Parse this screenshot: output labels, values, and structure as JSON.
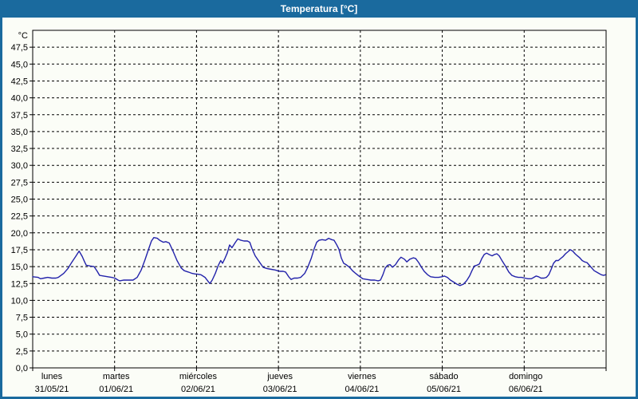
{
  "window": {
    "title": "Temperatura [°C]",
    "titlebar_color": "#1A6A9E",
    "background_color": "#FBFDF7"
  },
  "chart_data": {
    "type": "line",
    "title": "Temperatura [°C]",
    "y_unit": "°C",
    "ylim": [
      0,
      50
    ],
    "y_tick_step": 2.5,
    "y_tick_labels": [
      "0,0",
      "2,5",
      "5,0",
      "7,5",
      "10,0",
      "12,5",
      "15,0",
      "17,5",
      "20,0",
      "22,5",
      "25,0",
      "27,5",
      "30,0",
      "32,5",
      "35,0",
      "37,5",
      "40,0",
      "42,5",
      "45,0",
      "47,5"
    ],
    "grid": "dashed",
    "legend": "none",
    "axis_color": "#000000",
    "line_color": "#2222AA",
    "x_axis": {
      "hours_total": 168,
      "days": [
        {
          "name": "lunes",
          "date": "31/05/21"
        },
        {
          "name": "martes",
          "date": "01/06/21"
        },
        {
          "name": "miércoles",
          "date": "02/06/21"
        },
        {
          "name": "jueves",
          "date": "03/06/21"
        },
        {
          "name": "viernes",
          "date": "04/06/21"
        },
        {
          "name": "sábado",
          "date": "05/06/21"
        },
        {
          "name": "domingo",
          "date": "06/06/21"
        }
      ]
    },
    "series": [
      {
        "name": "Temperatura",
        "points": [
          [
            0,
            13.5
          ],
          [
            1.6,
            13.4
          ],
          [
            2.3,
            13.2
          ],
          [
            3.3,
            13.3
          ],
          [
            4.4,
            13.4
          ],
          [
            5.6,
            13.3
          ],
          [
            6.8,
            13.3
          ],
          [
            7.5,
            13.4
          ],
          [
            9.1,
            14.0
          ],
          [
            10.3,
            14.7
          ],
          [
            11.4,
            15.6
          ],
          [
            12.6,
            16.5
          ],
          [
            13.6,
            17.3
          ],
          [
            14.5,
            16.5
          ],
          [
            15.2,
            15.7
          ],
          [
            15.7,
            15.2
          ],
          [
            16.8,
            15.1
          ],
          [
            18.0,
            15.0
          ],
          [
            18.9,
            14.3
          ],
          [
            19.6,
            13.7
          ],
          [
            20.8,
            13.6
          ],
          [
            22.0,
            13.5
          ],
          [
            23.1,
            13.4
          ],
          [
            24.1,
            13.3
          ],
          [
            25.0,
            13.0
          ],
          [
            25.5,
            12.9
          ],
          [
            26.6,
            13.0
          ],
          [
            27.8,
            13.0
          ],
          [
            29.4,
            13.0
          ],
          [
            30.6,
            13.4
          ],
          [
            31.8,
            14.5
          ],
          [
            32.9,
            16.0
          ],
          [
            33.9,
            17.5
          ],
          [
            34.8,
            18.8
          ],
          [
            35.5,
            19.3
          ],
          [
            36.5,
            19.2
          ],
          [
            37.2,
            18.9
          ],
          [
            38.3,
            18.6
          ],
          [
            39.0,
            18.7
          ],
          [
            40.0,
            18.5
          ],
          [
            41.1,
            17.3
          ],
          [
            42.3,
            15.9
          ],
          [
            43.5,
            14.8
          ],
          [
            44.4,
            14.4
          ],
          [
            45.6,
            14.2
          ],
          [
            46.7,
            14.0
          ],
          [
            47.7,
            13.9
          ],
          [
            48.1,
            13.9
          ],
          [
            49.3,
            13.8
          ],
          [
            50.5,
            13.4
          ],
          [
            51.4,
            12.8
          ],
          [
            51.9,
            12.5
          ],
          [
            52.6,
            13.0
          ],
          [
            53.5,
            14.0
          ],
          [
            54.4,
            15.2
          ],
          [
            55.1,
            15.9
          ],
          [
            55.6,
            15.5
          ],
          [
            56.3,
            16.2
          ],
          [
            57.0,
            17.0
          ],
          [
            57.7,
            18.2
          ],
          [
            58.4,
            17.8
          ],
          [
            59.4,
            18.6
          ],
          [
            60.1,
            19.1
          ],
          [
            61.0,
            18.9
          ],
          [
            61.9,
            18.8
          ],
          [
            62.9,
            18.8
          ],
          [
            63.6,
            18.6
          ],
          [
            64.3,
            17.6
          ],
          [
            65.2,
            16.6
          ],
          [
            66.4,
            15.7
          ],
          [
            67.5,
            14.9
          ],
          [
            68.7,
            14.7
          ],
          [
            69.9,
            14.6
          ],
          [
            71.0,
            14.5
          ],
          [
            71.7,
            14.4
          ],
          [
            72.4,
            14.3
          ],
          [
            73.4,
            14.3
          ],
          [
            74.1,
            14.2
          ],
          [
            75.0,
            13.5
          ],
          [
            75.7,
            13.1
          ],
          [
            76.6,
            13.3
          ],
          [
            77.6,
            13.3
          ],
          [
            78.5,
            13.4
          ],
          [
            79.7,
            14.0
          ],
          [
            80.6,
            14.9
          ],
          [
            81.6,
            16.2
          ],
          [
            82.5,
            17.7
          ],
          [
            83.2,
            18.6
          ],
          [
            83.9,
            18.9
          ],
          [
            84.8,
            19.0
          ],
          [
            85.8,
            18.9
          ],
          [
            86.7,
            19.2
          ],
          [
            87.6,
            19.0
          ],
          [
            88.3,
            18.9
          ],
          [
            89.0,
            18.3
          ],
          [
            89.7,
            17.6
          ],
          [
            90.4,
            16.3
          ],
          [
            91.1,
            15.5
          ],
          [
            91.8,
            15.3
          ],
          [
            92.8,
            14.9
          ],
          [
            93.7,
            14.4
          ],
          [
            94.6,
            14.0
          ],
          [
            95.6,
            13.6
          ],
          [
            96.7,
            13.2
          ],
          [
            97.9,
            13.1
          ],
          [
            99.1,
            13.0
          ],
          [
            100.2,
            13.0
          ],
          [
            101.2,
            12.9
          ],
          [
            101.9,
            13.0
          ],
          [
            102.6,
            13.8
          ],
          [
            103.3,
            14.8
          ],
          [
            104.0,
            15.2
          ],
          [
            104.7,
            15.3
          ],
          [
            105.4,
            14.9
          ],
          [
            106.3,
            15.3
          ],
          [
            107.2,
            16.0
          ],
          [
            107.9,
            16.4
          ],
          [
            108.9,
            16.1
          ],
          [
            109.6,
            15.7
          ],
          [
            110.5,
            16.1
          ],
          [
            111.5,
            16.3
          ],
          [
            112.2,
            16.2
          ],
          [
            113.1,
            15.6
          ],
          [
            113.8,
            15.0
          ],
          [
            114.7,
            14.3
          ],
          [
            115.7,
            13.8
          ],
          [
            116.6,
            13.5
          ],
          [
            117.8,
            13.4
          ],
          [
            118.9,
            13.4
          ],
          [
            119.9,
            13.5
          ],
          [
            120.6,
            13.6
          ],
          [
            121.5,
            13.4
          ],
          [
            122.4,
            13.0
          ],
          [
            123.4,
            12.7
          ],
          [
            124.3,
            12.4
          ],
          [
            125.2,
            12.2
          ],
          [
            126.2,
            12.4
          ],
          [
            127.1,
            12.9
          ],
          [
            128.0,
            13.6
          ],
          [
            128.7,
            14.4
          ],
          [
            129.4,
            15.1
          ],
          [
            130.1,
            15.2
          ],
          [
            130.9,
            15.4
          ],
          [
            131.6,
            16.2
          ],
          [
            132.3,
            16.8
          ],
          [
            133.0,
            17.0
          ],
          [
            133.7,
            16.8
          ],
          [
            134.6,
            16.6
          ],
          [
            135.3,
            16.8
          ],
          [
            136.0,
            16.9
          ],
          [
            136.7,
            16.6
          ],
          [
            137.6,
            15.8
          ],
          [
            138.6,
            15.0
          ],
          [
            139.5,
            14.2
          ],
          [
            140.4,
            13.7
          ],
          [
            141.4,
            13.5
          ],
          [
            142.3,
            13.4
          ],
          [
            143.2,
            13.4
          ],
          [
            144.2,
            13.3
          ],
          [
            145.1,
            13.2
          ],
          [
            146.1,
            13.2
          ],
          [
            146.8,
            13.4
          ],
          [
            147.5,
            13.6
          ],
          [
            148.2,
            13.5
          ],
          [
            148.9,
            13.3
          ],
          [
            149.8,
            13.3
          ],
          [
            150.5,
            13.4
          ],
          [
            151.2,
            13.8
          ],
          [
            151.9,
            14.6
          ],
          [
            152.6,
            15.5
          ],
          [
            153.3,
            15.9
          ],
          [
            154.0,
            15.9
          ],
          [
            154.7,
            16.2
          ],
          [
            155.4,
            16.5
          ],
          [
            156.1,
            16.9
          ],
          [
            156.8,
            17.2
          ],
          [
            157.5,
            17.5
          ],
          [
            158.2,
            17.3
          ],
          [
            158.9,
            16.9
          ],
          [
            159.6,
            16.6
          ],
          [
            160.3,
            16.3
          ],
          [
            161.0,
            15.9
          ],
          [
            161.7,
            15.7
          ],
          [
            162.4,
            15.6
          ],
          [
            163.1,
            15.2
          ],
          [
            163.8,
            14.8
          ],
          [
            164.5,
            14.4
          ],
          [
            165.2,
            14.2
          ],
          [
            165.9,
            14.0
          ],
          [
            166.6,
            13.8
          ],
          [
            167.3,
            13.7
          ],
          [
            167.8,
            13.8
          ]
        ]
      }
    ]
  }
}
